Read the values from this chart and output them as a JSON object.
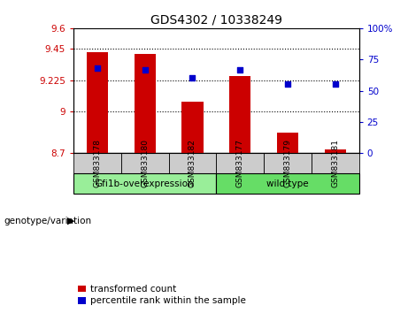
{
  "title": "GDS4302 / 10338249",
  "samples": [
    "GSM833178",
    "GSM833180",
    "GSM833182",
    "GSM833177",
    "GSM833179",
    "GSM833181"
  ],
  "bar_values": [
    9.43,
    9.415,
    9.07,
    9.255,
    8.845,
    8.73
  ],
  "percentile_values": [
    68,
    67,
    60,
    67,
    55,
    55
  ],
  "ymin": 8.7,
  "ymax": 9.6,
  "yticks": [
    8.7,
    9.0,
    9.225,
    9.45,
    9.6
  ],
  "ytick_labels": [
    "8.7",
    "9",
    "9.225",
    "9.45",
    "9.6"
  ],
  "y2min": 0,
  "y2max": 100,
  "y2ticks": [
    0,
    25,
    50,
    75,
    100
  ],
  "y2tick_labels": [
    "0",
    "25",
    "50",
    "75",
    "100%"
  ],
  "bar_color": "#cc0000",
  "square_color": "#0000cc",
  "group1_label": "Gfi1b-overexpression",
  "group2_label": "wild type",
  "group1_color": "#99ee99",
  "group2_color": "#66dd66",
  "group1_indices": [
    0,
    1,
    2
  ],
  "group2_indices": [
    3,
    4,
    5
  ],
  "genotype_label": "genotype/variation",
  "legend_red": "transformed count",
  "legend_blue": "percentile rank within the sample",
  "bar_width": 0.45,
  "grid_color": "black",
  "bg_xticklabel": "#cccccc",
  "left_tick_color": "#cc0000",
  "right_tick_color": "#0000cc",
  "title_fontsize": 10
}
